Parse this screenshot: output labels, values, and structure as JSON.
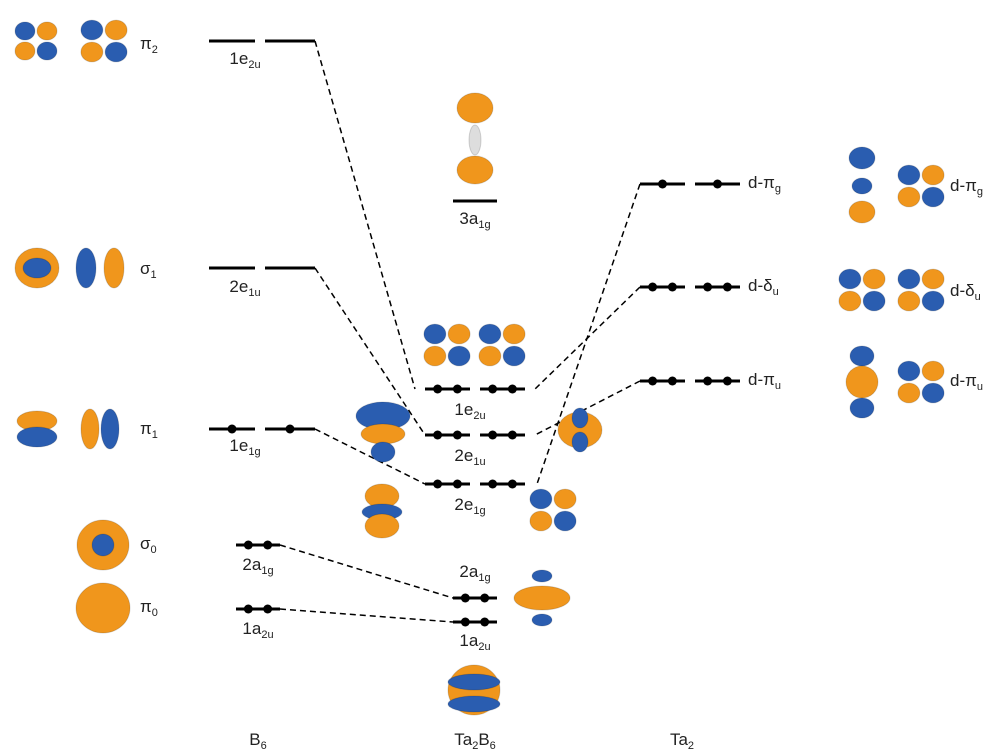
{
  "b6_orbitals": [
    [
      [
        "π",
        "2"
      ]
    ],
    [
      [
        "σ",
        "1"
      ]
    ],
    [
      [
        "π",
        "1"
      ]
    ],
    [
      [
        "σ",
        "0"
      ]
    ],
    [
      [
        "π",
        "0"
      ]
    ]
  ],
  "b6_levels": [
    [
      [
        "1e",
        "2u"
      ]
    ],
    [
      [
        "2e",
        "1u"
      ]
    ],
    [
      [
        "1e",
        "1g"
      ]
    ],
    [
      [
        "2a",
        "1g"
      ]
    ],
    [
      [
        "1a",
        "2u"
      ]
    ]
  ],
  "ta2b6_levels": [
    [
      [
        "3a",
        "1g"
      ]
    ],
    [
      [
        "1e",
        "2u"
      ]
    ],
    [
      [
        "2e",
        "1u"
      ]
    ],
    [
      [
        "2e",
        "1g"
      ]
    ],
    [
      [
        "2a",
        "1g"
      ]
    ],
    [
      [
        "1a",
        "2u"
      ]
    ]
  ],
  "ta2_levels": [
    [
      [
        "d-π",
        "g"
      ]
    ],
    [
      [
        "d-δ",
        "u"
      ]
    ],
    [
      [
        "d-π",
        "u"
      ]
    ]
  ],
  "ta2_orbitals": [
    [
      [
        "d-π",
        "g"
      ]
    ],
    [
      [
        "d-δ",
        "u"
      ]
    ],
    [
      [
        "d-π",
        "u"
      ]
    ]
  ],
  "fragments": [
    [
      [
        "B",
        "6"
      ]
    ],
    [
      [
        "Ta",
        "2"
      ],
      [
        "B",
        "6"
      ]
    ],
    [
      [
        "Ta",
        "2"
      ]
    ]
  ]
}
